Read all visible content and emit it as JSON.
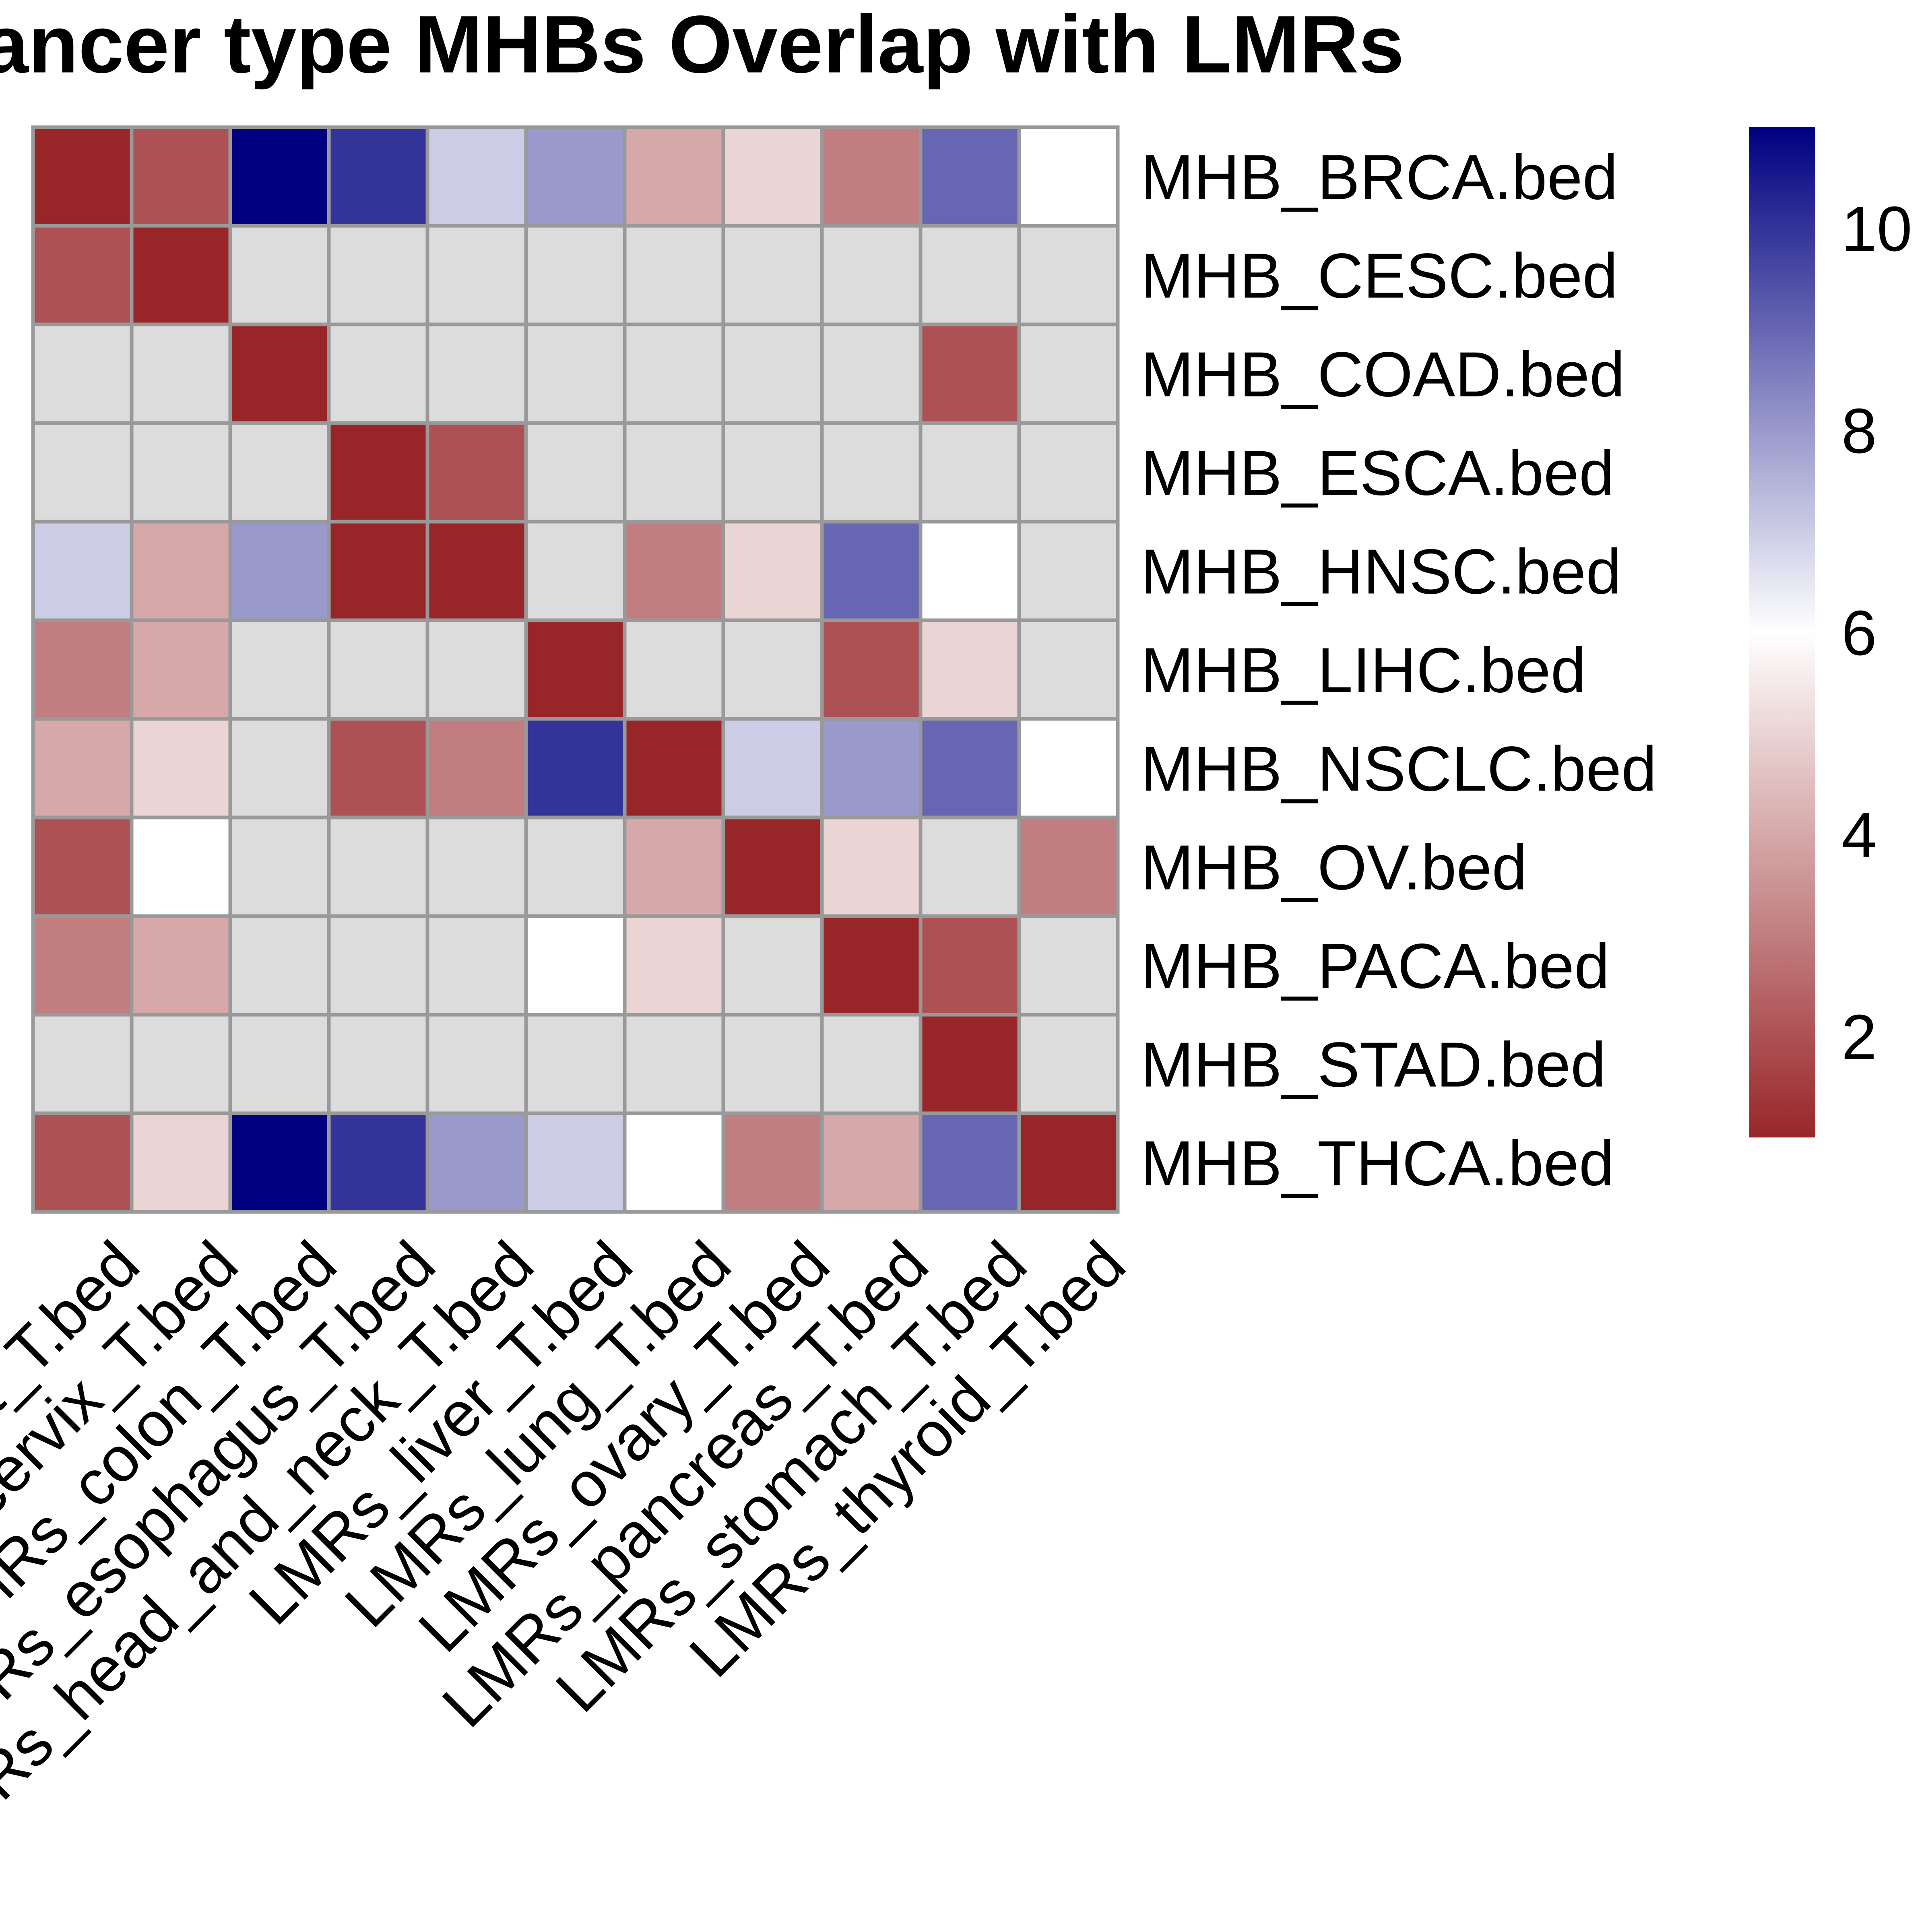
{
  "chart_data": {
    "type": "heatmap",
    "title": "Cancer type MHBs Overlap with LMRs",
    "rows": [
      "MHB_BRCA.bed",
      "MHB_CESC.bed",
      "MHB_COAD.bed",
      "MHB_ESCA.bed",
      "MHB_HNSC.bed",
      "MHB_LIHC.bed",
      "MHB_NSCLC.bed",
      "MHB_OV.bed",
      "MHB_PACA.bed",
      "MHB_STAD.bed",
      "MHB_THCA.bed"
    ],
    "columns": [
      "LMRs_breast_T.bed",
      "LMRs_cervix_T.bed",
      "LMRs_colon_T.bed",
      "LMRs_esophagus_T.bed",
      "LMRs_head_and_neck_T.bed",
      "LMRs_liver_T.bed",
      "LMRs_lung_T.bed",
      "LMRs_ovary_T.bed",
      "LMRs_pancreas_T.bed",
      "LMRs_stomach_T.bed",
      "LMRs_thyroid_T.bed"
    ],
    "values": [
      [
        1.0,
        2.0,
        11.0,
        10.0,
        7.0,
        8.0,
        4.0,
        5.0,
        3.0,
        9.0,
        6.0
      ],
      [
        2.0,
        1.0,
        null,
        null,
        null,
        null,
        null,
        null,
        null,
        null,
        null
      ],
      [
        null,
        null,
        1.0,
        null,
        null,
        null,
        null,
        null,
        null,
        2.0,
        null
      ],
      [
        null,
        null,
        null,
        1.0,
        2.0,
        null,
        null,
        null,
        null,
        null,
        null
      ],
      [
        7.0,
        4.0,
        8.0,
        1.0,
        1.0,
        null,
        3.0,
        5.0,
        9.0,
        6.0,
        null
      ],
      [
        3.0,
        4.0,
        null,
        null,
        null,
        1.0,
        null,
        null,
        2.0,
        5.0,
        null
      ],
      [
        4.0,
        5.0,
        null,
        2.0,
        3.0,
        10.0,
        1.0,
        7.0,
        8.0,
        9.0,
        6.0
      ],
      [
        2.0,
        6.0,
        null,
        null,
        null,
        null,
        4.0,
        1.0,
        5.0,
        null,
        3.0
      ],
      [
        3.0,
        4.0,
        null,
        null,
        null,
        6.0,
        5.0,
        null,
        1.0,
        2.0,
        null
      ],
      [
        null,
        null,
        null,
        null,
        null,
        null,
        null,
        null,
        null,
        1.0,
        null
      ],
      [
        2.0,
        5.0,
        11.0,
        10.0,
        8.0,
        7.0,
        6.0,
        3.0,
        4.0,
        9.0,
        1.0
      ]
    ],
    "legend": {
      "ticks": [
        2,
        4,
        6,
        8,
        10
      ],
      "min": 1,
      "max": 11,
      "low_color": "#982629",
      "mid_color": "#ffffff",
      "high_color": "#000080",
      "mid_value": 6,
      "na_color": "#dcdcdc"
    },
    "grid_color": "#999999"
  }
}
